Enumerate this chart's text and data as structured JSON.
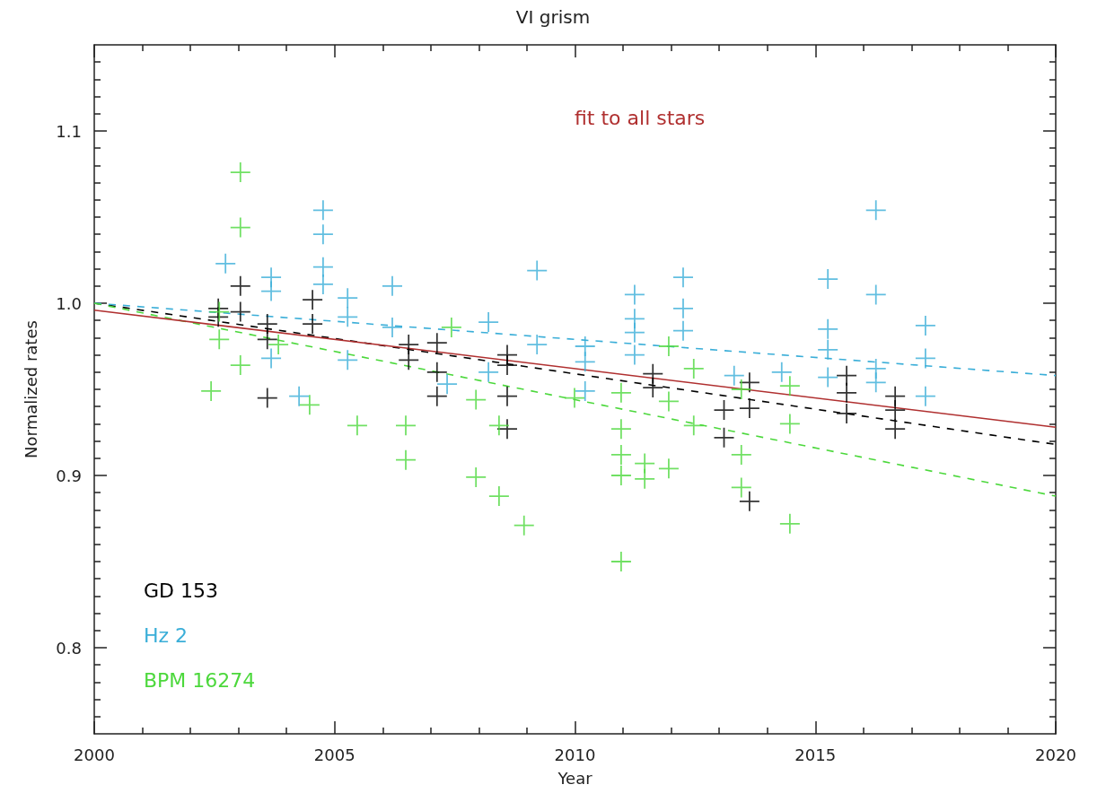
{
  "chart_data": {
    "type": "scatter",
    "title": "VI grism",
    "xlabel": "Year",
    "ylabel": "Normalized rates",
    "xlim": [
      2000,
      2020
    ],
    "xticks": [
      2000,
      2005,
      2010,
      2015,
      2020
    ],
    "ylim": [
      0.75,
      1.15
    ],
    "yticks": [
      0.8,
      0.9,
      {
        "value": 1,
        "label": "1.0"
      },
      1.1
    ],
    "annotations": [
      "fit to all stars"
    ],
    "grid": false,
    "legend": "bottom left",
    "marker": "cross",
    "series": [
      {
        "name": "GD 153",
        "color": "#000000",
        "x": [
          2003.04,
          2003.04,
          2002.58,
          2002.58,
          2003.6,
          2003.6,
          2003.6,
          2004.54,
          2004.54,
          2006.54,
          2006.54,
          2007.13,
          2007.13,
          2007.13,
          2008.59,
          2008.59,
          2008.59,
          2008.59,
          2011.62,
          2011.62,
          2013.1,
          2013.1,
          2013.63,
          2013.63,
          2013.63,
          2015.65,
          2015.65,
          2015.65,
          2016.66,
          2016.66,
          2016.66
        ],
        "values": [
          1.01,
          0.995,
          0.997,
          0.992,
          0.988,
          0.979,
          0.945,
          1.002,
          0.988,
          0.976,
          0.967,
          0.977,
          0.96,
          0.946,
          0.97,
          0.964,
          0.946,
          0.927,
          0.959,
          0.951,
          0.938,
          0.922,
          0.954,
          0.939,
          0.885,
          0.958,
          0.948,
          0.936,
          0.946,
          0.938,
          0.927
        ]
      },
      {
        "name": "Hz 2",
        "color": "#3aaed8",
        "x": [
          2002.73,
          2003.68,
          2003.68,
          2003.68,
          2004.76,
          2004.76,
          2004.76,
          2004.76,
          2004.26,
          2005.27,
          2005.27,
          2005.27,
          2006.2,
          2006.2,
          2007.34,
          2008.2,
          2008.2,
          2009.21,
          2009.21,
          2010.21,
          2010.21,
          2010.21,
          2011.24,
          2011.24,
          2011.24,
          2011.24,
          2012.25,
          2012.25,
          2012.25,
          2013.31,
          2014.3,
          2015.26,
          2015.26,
          2015.26,
          2015.26,
          2016.26,
          2016.26,
          2016.26,
          2016.26,
          2017.29,
          2017.29,
          2017.29
        ],
        "values": [
          1.023,
          1.015,
          1.007,
          0.968,
          1.054,
          1.04,
          1.021,
          1.011,
          0.946,
          1.003,
          0.992,
          0.967,
          1.01,
          0.986,
          0.953,
          0.989,
          0.96,
          1.019,
          0.976,
          0.975,
          0.966,
          0.949,
          1.005,
          0.991,
          0.983,
          0.97,
          1.015,
          0.997,
          0.984,
          0.958,
          0.96,
          1.014,
          0.985,
          0.973,
          0.957,
          1.054,
          1.005,
          0.962,
          0.954,
          0.987,
          0.968,
          0.946
        ]
      },
      {
        "name": "BPM 16274",
        "color": "#4cd83c",
        "x": [
          2003.04,
          2003.04,
          2002.43,
          2003.04,
          2002.6,
          2002.6,
          2003.83,
          2004.48,
          2005.47,
          2006.48,
          2006.48,
          2007.94,
          2008.42,
          2008.94,
          2007.43,
          2007.94,
          2008.42,
          2009.99,
          2010.96,
          2010.96,
          2010.96,
          2010.96,
          2010.96,
          2011.45,
          2011.45,
          2011.95,
          2011.95,
          2011.95,
          2012.47,
          2012.47,
          2013.46,
          2013.46,
          2013.46,
          2014.47,
          2014.47,
          2014.47
        ],
        "values": [
          1.076,
          1.044,
          0.949,
          0.964,
          0.979,
          0.995,
          0.976,
          0.941,
          0.929,
          0.929,
          0.909,
          0.899,
          0.888,
          0.871,
          0.986,
          0.944,
          0.929,
          0.945,
          0.948,
          0.927,
          0.912,
          0.9,
          0.85,
          0.907,
          0.898,
          0.904,
          0.975,
          0.943,
          0.962,
          0.929,
          0.912,
          0.893,
          0.95,
          0.952,
          0.93,
          0.872
        ]
      },
      {
        "type": "line",
        "marker": "none",
        "line_style": "dashed",
        "color": "#000000",
        "x": [
          2000,
          2020
        ],
        "values": [
          1.0,
          0.918
        ]
      },
      {
        "type": "line",
        "marker": "none",
        "line_style": "dashed",
        "color": "#3aaed8",
        "x": [
          2000,
          2020
        ],
        "values": [
          1.0,
          0.958
        ]
      },
      {
        "type": "line",
        "marker": "none",
        "line_style": "dashed",
        "color": "#4cd83c",
        "x": [
          2000,
          2020
        ],
        "values": [
          1.0,
          0.888
        ]
      },
      {
        "type": "line",
        "marker": "none",
        "line_style": "solid",
        "color": "#b03030",
        "x": [
          2000,
          2020
        ],
        "values": [
          0.996,
          0.928
        ]
      }
    ]
  }
}
